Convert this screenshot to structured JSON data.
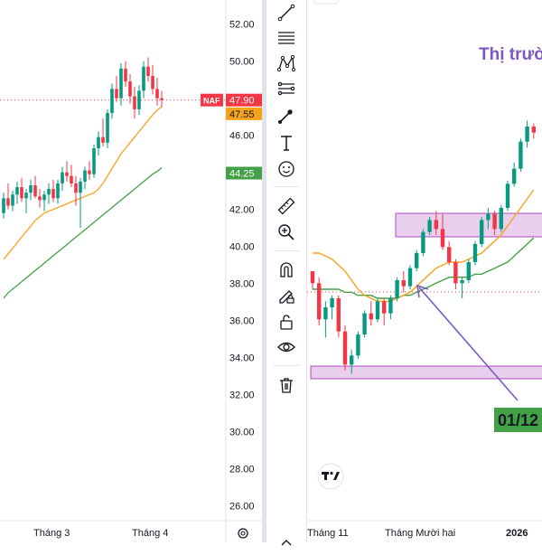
{
  "chart_data": [
    {
      "type": "candlestick",
      "y_ticks": [
        "52.00",
        "50.00",
        "48.00",
        "46.00",
        "44.00",
        "42.00",
        "40.00",
        "38.00",
        "36.00",
        "34.00",
        "32.00",
        "30.00",
        "28.00",
        "26.00"
      ],
      "ylim": [
        25.2,
        53.3
      ],
      "x_labels": [
        "Tháng 3",
        "Tháng 4"
      ],
      "price_labels": [
        {
          "tag": "NAF",
          "value": "47.90",
          "color": "#f23645"
        },
        {
          "value": "47.55",
          "color": "#f7a21b"
        },
        {
          "value": "44.25",
          "color": "#43a047"
        }
      ],
      "candles": [
        [
          41.8,
          42.9,
          41.5,
          42.6
        ],
        [
          42.6,
          43.4,
          42.0,
          42.2
        ],
        [
          42.2,
          43.0,
          41.9,
          42.8
        ],
        [
          42.8,
          43.5,
          42.3,
          43.2
        ],
        [
          43.2,
          43.7,
          42.4,
          42.6
        ],
        [
          42.6,
          43.1,
          41.8,
          42.9
        ],
        [
          42.9,
          43.6,
          42.5,
          43.3
        ],
        [
          43.3,
          43.8,
          42.6,
          42.7
        ],
        [
          42.7,
          43.1,
          42.1,
          42.5
        ],
        [
          42.5,
          43.0,
          41.9,
          42.8
        ],
        [
          42.8,
          43.4,
          42.3,
          43.1
        ],
        [
          43.1,
          43.6,
          42.4,
          42.6
        ],
        [
          42.6,
          43.6,
          42.3,
          43.4
        ],
        [
          43.4,
          44.3,
          43.0,
          44.0
        ],
        [
          44.0,
          44.6,
          43.5,
          43.8
        ],
        [
          43.8,
          44.4,
          43.2,
          43.4
        ],
        [
          43.4,
          43.8,
          42.2,
          42.9
        ],
        [
          42.9,
          43.7,
          41.0,
          43.5
        ],
        [
          43.5,
          44.3,
          43.1,
          44.1
        ],
        [
          44.1,
          44.6,
          43.6,
          43.9
        ],
        [
          43.9,
          45.5,
          43.7,
          45.3
        ],
        [
          45.3,
          46.2,
          44.9,
          45.9
        ],
        [
          45.9,
          46.9,
          45.4,
          45.6
        ],
        [
          45.6,
          47.4,
          45.3,
          47.2
        ],
        [
          47.2,
          48.8,
          46.9,
          48.5
        ],
        [
          48.5,
          49.2,
          47.8,
          48.0
        ],
        [
          48.0,
          49.9,
          47.6,
          49.6
        ],
        [
          49.6,
          50.0,
          48.6,
          48.9
        ],
        [
          48.9,
          49.3,
          47.7,
          48.1
        ],
        [
          48.1,
          48.6,
          46.9,
          47.4
        ],
        [
          47.4,
          48.7,
          47.1,
          48.4
        ],
        [
          48.4,
          50.0,
          48.0,
          49.7
        ],
        [
          49.7,
          50.2,
          48.9,
          49.2
        ],
        [
          49.2,
          49.8,
          48.2,
          48.5
        ],
        [
          48.5,
          49.1,
          47.6,
          48.0
        ],
        [
          48.0,
          48.4,
          47.5,
          47.9
        ]
      ],
      "ma_orange": [
        39.3,
        39.6,
        39.9,
        40.2,
        40.5,
        40.8,
        41.1,
        41.4,
        41.6,
        41.8,
        41.9,
        42.0,
        42.1,
        42.2,
        42.3,
        42.4,
        42.5,
        42.6,
        42.7,
        42.8,
        42.9,
        43.1,
        43.4,
        43.8,
        44.2,
        44.6,
        45.0,
        45.3,
        45.6,
        45.9,
        46.2,
        46.5,
        46.8,
        47.1,
        47.35,
        47.55
      ],
      "ma_green": [
        37.2,
        37.5,
        37.7,
        37.9,
        38.1,
        38.3,
        38.5,
        38.7,
        38.9,
        39.1,
        39.3,
        39.5,
        39.7,
        39.9,
        40.1,
        40.3,
        40.5,
        40.7,
        40.9,
        41.1,
        41.3,
        41.5,
        41.7,
        41.9,
        42.1,
        42.3,
        42.5,
        42.7,
        42.9,
        43.1,
        43.3,
        43.5,
        43.7,
        43.9,
        44.05,
        44.25
      ],
      "current_price": 47.9
    },
    {
      "type": "candlestick",
      "title": "Thị trườ",
      "x_labels": [
        "Tháng 11",
        "Tháng Mười hai",
        "2026"
      ],
      "annotation_label": "01/12",
      "candles": [
        [
          0.66,
          0.66,
          0.6,
          0.62
        ],
        [
          0.62,
          0.64,
          0.48,
          0.5
        ],
        [
          0.5,
          0.56,
          0.44,
          0.54
        ],
        [
          0.54,
          0.58,
          0.5,
          0.57
        ],
        [
          0.57,
          0.58,
          0.44,
          0.46
        ],
        [
          0.46,
          0.48,
          0.33,
          0.35
        ],
        [
          0.35,
          0.4,
          0.32,
          0.38
        ],
        [
          0.38,
          0.46,
          0.37,
          0.45
        ],
        [
          0.45,
          0.53,
          0.44,
          0.52
        ],
        [
          0.52,
          0.56,
          0.48,
          0.5
        ],
        [
          0.5,
          0.57,
          0.49,
          0.56
        ],
        [
          0.56,
          0.57,
          0.48,
          0.52
        ],
        [
          0.52,
          0.58,
          0.5,
          0.57
        ],
        [
          0.57,
          0.64,
          0.56,
          0.63
        ],
        [
          0.63,
          0.66,
          0.59,
          0.61
        ],
        [
          0.61,
          0.68,
          0.6,
          0.67
        ],
        [
          0.67,
          0.73,
          0.66,
          0.72
        ],
        [
          0.72,
          0.8,
          0.71,
          0.79
        ],
        [
          0.79,
          0.84,
          0.78,
          0.83
        ],
        [
          0.83,
          0.86,
          0.78,
          0.8
        ],
        [
          0.8,
          0.85,
          0.73,
          0.74
        ],
        [
          0.74,
          0.76,
          0.68,
          0.69
        ],
        [
          0.69,
          0.7,
          0.6,
          0.62
        ],
        [
          0.62,
          0.64,
          0.57,
          0.63
        ],
        [
          0.63,
          0.7,
          0.62,
          0.69
        ],
        [
          0.69,
          0.76,
          0.68,
          0.75
        ],
        [
          0.75,
          0.84,
          0.74,
          0.83
        ],
        [
          0.83,
          0.87,
          0.8,
          0.85
        ],
        [
          0.85,
          0.86,
          0.78,
          0.8
        ],
        [
          0.8,
          0.88,
          0.79,
          0.87
        ],
        [
          0.87,
          0.96,
          0.86,
          0.95
        ],
        [
          0.95,
          1.02,
          0.94,
          1.0
        ],
        [
          1.0,
          1.1,
          0.99,
          1.09
        ],
        [
          1.09,
          1.16,
          1.07,
          1.14
        ],
        [
          1.14,
          1.15,
          1.1,
          1.12
        ]
      ],
      "ma_orange": [
        0.72,
        0.72,
        0.71,
        0.7,
        0.68,
        0.66,
        0.63,
        0.6,
        0.58,
        0.57,
        0.56,
        0.56,
        0.56,
        0.57,
        0.58,
        0.59,
        0.61,
        0.63,
        0.65,
        0.67,
        0.68,
        0.69,
        0.69,
        0.69,
        0.7,
        0.71,
        0.72,
        0.74,
        0.76,
        0.78,
        0.81,
        0.84,
        0.87,
        0.9,
        0.93
      ],
      "ma_green": [
        0.6,
        0.6,
        0.6,
        0.6,
        0.6,
        0.59,
        0.59,
        0.58,
        0.58,
        0.58,
        0.57,
        0.57,
        0.57,
        0.57,
        0.58,
        0.58,
        0.59,
        0.6,
        0.61,
        0.62,
        0.63,
        0.64,
        0.64,
        0.64,
        0.64,
        0.65,
        0.65,
        0.66,
        0.67,
        0.68,
        0.69,
        0.71,
        0.73,
        0.75,
        0.77
      ]
    }
  ],
  "colors": {
    "up": "#089981",
    "down": "#f23645",
    "orange": "#f7a21b",
    "green": "#43a047",
    "purple": "#7e57c2",
    "zone": "#e1bee7",
    "zone_border": "#9c27b0",
    "label_green": "#43a047"
  },
  "toolbar": {
    "tools": [
      "trend-line-icon",
      "fib-icon",
      "pattern-icon",
      "projection-icon",
      "brush-icon",
      "text-icon",
      "emoji-icon",
      "ruler-icon",
      "zoom-in-icon",
      "magnet-icon",
      "lock-drawing-icon",
      "lock-icon",
      "eye-icon",
      "trash-icon"
    ]
  },
  "bottom_icons": [
    "settings-icon"
  ]
}
